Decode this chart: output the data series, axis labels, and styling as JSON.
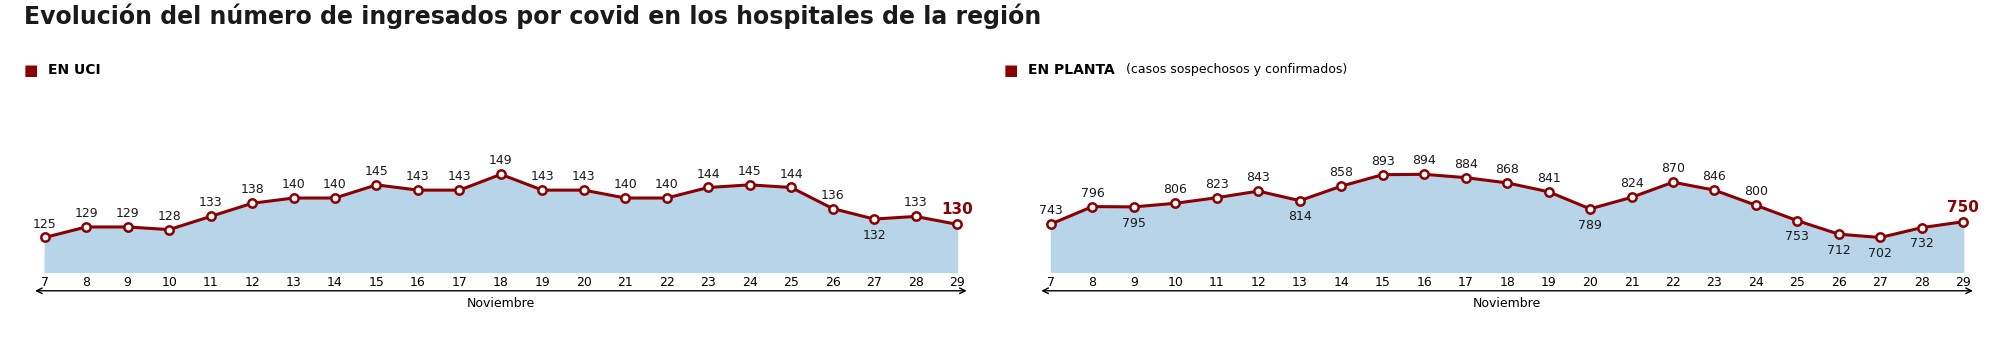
{
  "title": "Evolución del número de ingresados por covid en los hospitales de la región",
  "uci_label": "EN UCI",
  "planta_label": "EN PLANTA",
  "planta_sublabel": "(casos sospechosos y confirmados)",
  "days": [
    7,
    8,
    9,
    10,
    11,
    12,
    13,
    14,
    15,
    16,
    17,
    18,
    19,
    20,
    21,
    22,
    23,
    24,
    25,
    26,
    27,
    28,
    29
  ],
  "uci_values": [
    125,
    129,
    129,
    128,
    133,
    138,
    140,
    140,
    145,
    143,
    143,
    149,
    143,
    143,
    140,
    140,
    144,
    145,
    144,
    136,
    132,
    133,
    130
  ],
  "planta_values": [
    743,
    796,
    795,
    806,
    823,
    843,
    814,
    858,
    893,
    894,
    884,
    868,
    841,
    789,
    824,
    870,
    846,
    800,
    753,
    712,
    702,
    732,
    750
  ],
  "line_color": "#8B0000",
  "fill_color": "#b8d4e8",
  "fill_alpha": 1.0,
  "marker_face_color": "#FFFFFF",
  "marker_edge_color": "#8B0000",
  "bg_color": "#FFFFFF",
  "title_color": "#1a1a1a",
  "label_color": "#1a1a1a",
  "axis_label": "Noviembre",
  "uci_below_indices": [
    20
  ],
  "planta_below_indices": [
    2,
    6,
    13,
    18,
    19,
    20,
    21
  ],
  "title_fontsize": 17,
  "label_fontsize": 9,
  "last_fontsize": 11
}
